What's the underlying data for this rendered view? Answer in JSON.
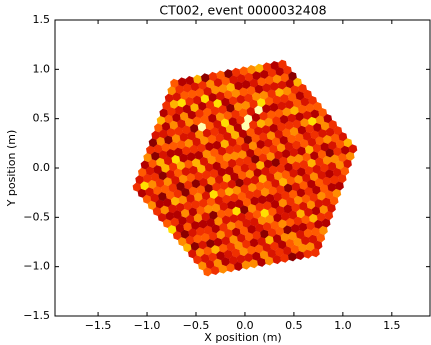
{
  "chart_data": {
    "type": "camera",
    "title": "CT002, event 0000032408",
    "xlabel": "X position (m)",
    "ylabel": "Y position (m)",
    "xlim": [
      -1.94,
      1.89
    ],
    "ylim": [
      -1.5,
      1.5
    ],
    "xticks": [
      {
        "value": -1.5,
        "label": "−1.5"
      },
      {
        "value": -1.0,
        "label": "−1.0"
      },
      {
        "value": -0.5,
        "label": "−0.5"
      },
      {
        "value": 0,
        "label": "0.0"
      },
      {
        "value": 0.5,
        "label": "0.5"
      },
      {
        "value": 1.0,
        "label": "1.0"
      },
      {
        "value": 1.5,
        "label": "1.5"
      }
    ],
    "yticks": [
      {
        "value": -1.5,
        "label": "−1.5"
      },
      {
        "value": -1.0,
        "label": "−1.0"
      },
      {
        "value": -0.5,
        "label": "−0.5"
      },
      {
        "value": 0,
        "label": "0.0"
      },
      {
        "value": 0.5,
        "label": "0.5"
      },
      {
        "value": 1.0,
        "label": "1.0"
      },
      {
        "value": 1.5,
        "label": "1.5"
      }
    ],
    "pixel_pitch": 0.08,
    "rings": 14,
    "rotation_deg": 10,
    "colormap": [
      "#5a0000",
      "#8b0000",
      "#b30000",
      "#d81400",
      "#f03000",
      "#ff5a00",
      "#ff8c00",
      "#ffb400",
      "#ffe000",
      "#ffffb0"
    ],
    "values": [
      4,
      3,
      5,
      2,
      6,
      4,
      1,
      3,
      5,
      7,
      2,
      4,
      3,
      6,
      5,
      2,
      8,
      4,
      3,
      5,
      1,
      4,
      6,
      3,
      2,
      5,
      4,
      7,
      3,
      4,
      2,
      5,
      3,
      6,
      4,
      2,
      7,
      3,
      5,
      1,
      4,
      6,
      2,
      3,
      8,
      5,
      4,
      2,
      6,
      3,
      5,
      4,
      1,
      7,
      3,
      2,
      5,
      6,
      4,
      3,
      6,
      2,
      4,
      5,
      3,
      7,
      4,
      2,
      1,
      5,
      6,
      3,
      4,
      8,
      2,
      5,
      3,
      4,
      6,
      2,
      7,
      3,
      5,
      4,
      1,
      3,
      6,
      2,
      5,
      4,
      3,
      5,
      7,
      2,
      4,
      6,
      3,
      1,
      5,
      4,
      2,
      8,
      3,
      6,
      4,
      5,
      2,
      3,
      7,
      4,
      1,
      6,
      3,
      5,
      2,
      4,
      3,
      6,
      9,
      5,
      5,
      4,
      2,
      6,
      3,
      5,
      8,
      4,
      2,
      3,
      6,
      1,
      4,
      5,
      3,
      7,
      2,
      4,
      6,
      3,
      5,
      2,
      4,
      8,
      3,
      6,
      5,
      1,
      4,
      2,
      2,
      6,
      4,
      3,
      5,
      1,
      4,
      7,
      3,
      6,
      2,
      5,
      4,
      3,
      6,
      4,
      2,
      5,
      7,
      3,
      4,
      6,
      1,
      5,
      3,
      2,
      4,
      6,
      5,
      3,
      4,
      3,
      6,
      5,
      2,
      4,
      3,
      8,
      5,
      1,
      4,
      6,
      2,
      3,
      5,
      7,
      4,
      3,
      2,
      6,
      5,
      4,
      3,
      1,
      6,
      4,
      2,
      5,
      3,
      7,
      3,
      7,
      2,
      4,
      6,
      3,
      5,
      2,
      4,
      6,
      3,
      1,
      5,
      4,
      2,
      3,
      6,
      5,
      8,
      4,
      3,
      2,
      5,
      6,
      4,
      3,
      7,
      2,
      4,
      5,
      6,
      4,
      5,
      3,
      2,
      7,
      4,
      6,
      3,
      5,
      4,
      2,
      1,
      6,
      3,
      5,
      4,
      7,
      2,
      3,
      6,
      4,
      5,
      2,
      9,
      9,
      3,
      4,
      6,
      2,
      5,
      2,
      4,
      6,
      3,
      5,
      1,
      4,
      2,
      6,
      5,
      3,
      4,
      7,
      3,
      2,
      5,
      4,
      6,
      3,
      1,
      5,
      4,
      2,
      9,
      8,
      6,
      3,
      5,
      4,
      2,
      5,
      3,
      4,
      7,
      2,
      6,
      4,
      3,
      5,
      2,
      4,
      6,
      1,
      5,
      3,
      4,
      2,
      6,
      5,
      3,
      7,
      4,
      2,
      5,
      4,
      3,
      6,
      2,
      4,
      4,
      6,
      2,
      5,
      3,
      4,
      6,
      3,
      8,
      2,
      5,
      4,
      3,
      6,
      4,
      1,
      5,
      2,
      4,
      3,
      6,
      5,
      2,
      4,
      7,
      3,
      5,
      4,
      6,
      2,
      3,
      4,
      6,
      2,
      5,
      3,
      1,
      5,
      4,
      6,
      3,
      2,
      7,
      4,
      5,
      3,
      6,
      2,
      4,
      5,
      3,
      4,
      6,
      2,
      1,
      5,
      3,
      4,
      6,
      3,
      5,
      3,
      4,
      6,
      2,
      4,
      5,
      7,
      3,
      2,
      6,
      4,
      5,
      3,
      4,
      2,
      6,
      3,
      5,
      4,
      7,
      2,
      3,
      6,
      4,
      5,
      2,
      3,
      5,
      4,
      2,
      6,
      5,
      3,
      4,
      1,
      3,
      6,
      2,
      5,
      4,
      3,
      7,
      5,
      2,
      4,
      6,
      3,
      5,
      2,
      4,
      3,
      6,
      8,
      4,
      2,
      5,
      3,
      6,
      4,
      4,
      2,
      3,
      5,
      6,
      4,
      2,
      5,
      3,
      4,
      6,
      2,
      5,
      3,
      1,
      4,
      6,
      5,
      2,
      3,
      4,
      7,
      5,
      2,
      6,
      3,
      4,
      5,
      2,
      6,
      3,
      5,
      4,
      2,
      6,
      3,
      7,
      4,
      5,
      2,
      3,
      6,
      4,
      1,
      5,
      3,
      4,
      6,
      2,
      5,
      3,
      4,
      8,
      2,
      5,
      6,
      3,
      4,
      2,
      5,
      6,
      3,
      2,
      4,
      5,
      3,
      6,
      2,
      4,
      5,
      7,
      3,
      4,
      2,
      6,
      5,
      3,
      4,
      2,
      6,
      1,
      5,
      3,
      4,
      6,
      2,
      5,
      3,
      4,
      7,
      2,
      4,
      5,
      3,
      6,
      2,
      4,
      3,
      5,
      6,
      2,
      4,
      7,
      3,
      5,
      4,
      2,
      6,
      3,
      4,
      5,
      2,
      6,
      3,
      4,
      1,
      5,
      6,
      3,
      2,
      5,
      3,
      6,
      4,
      2,
      5,
      3,
      4,
      6,
      1,
      3,
      5,
      4,
      2,
      6,
      3,
      5,
      4,
      7,
      2,
      3,
      6,
      5,
      4,
      2,
      3,
      6,
      4,
      5,
      3,
      4,
      6,
      3,
      5,
      2,
      4,
      6,
      3,
      5,
      2,
      4,
      3,
      6,
      5,
      2,
      7,
      4,
      3,
      5,
      6,
      2,
      4,
      3,
      5,
      6,
      2,
      4,
      5,
      3,
      6,
      3
    ]
  }
}
